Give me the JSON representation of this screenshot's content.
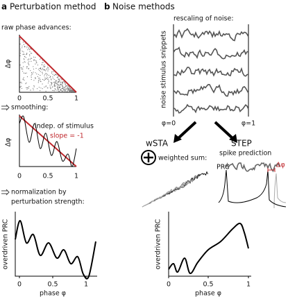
{
  "panel_a": {
    "letter": "a",
    "title": "Perturbation method",
    "raw": {
      "label": "raw phase advances:",
      "y_label": "Δφ",
      "x_ticks": [
        "0",
        "0.5",
        "1"
      ]
    },
    "smoothing": {
      "label": "smoothing:",
      "annotation": "indep. of stimulus",
      "slope": "slope = -1",
      "y_label": "Δφ",
      "x_ticks": [
        "0",
        "0.5",
        "1"
      ]
    },
    "normalization": {
      "label": [
        "normalization by",
        "perturbation strength:"
      ]
    },
    "prc": {
      "y_label": "overdriven PRC",
      "x_label": "phase φ",
      "x_ticks": [
        "0",
        "0.5",
        "1"
      ]
    }
  },
  "panel_b": {
    "letter": "b",
    "title": "Noise methods",
    "noise": {
      "label": "rescaling of noise:",
      "y_label": "noise stimulus snippets",
      "start": "φ=0",
      "end": "φ=1"
    },
    "wsta": {
      "title": "wSTA",
      "label": "weighted sum:"
    },
    "step": {
      "title": "STEP",
      "label": "spike prediction",
      "prc": "PRC",
      "delta": "Δφ"
    },
    "prc": {
      "y_label": "overdriven PRC",
      "x_label": "phase φ",
      "x_ticks": [
        "0",
        "0.5",
        "1"
      ]
    }
  }
}
